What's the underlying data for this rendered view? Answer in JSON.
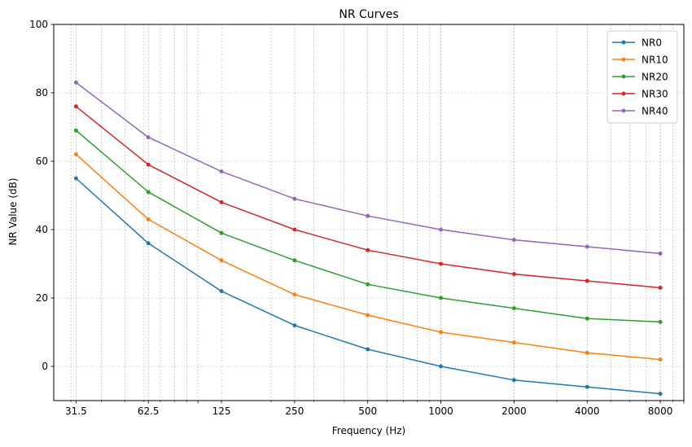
{
  "chart_data": {
    "type": "line",
    "title": "NR Curves",
    "xlabel": "Frequency (Hz)",
    "ylabel": "NR Value (dB)",
    "xscale": "log",
    "xlim": [
      25.5,
      10000
    ],
    "ylim": [
      -10,
      100
    ],
    "grid": "both",
    "legend_position": "upper right",
    "x": [
      31.5,
      62.5,
      125,
      250,
      500,
      1000,
      2000,
      4000,
      8000
    ],
    "x_tick_labels": [
      "31.5",
      "62.5",
      "125",
      "250",
      "500",
      "1000",
      "2000",
      "4000",
      "8000"
    ],
    "y_ticks": [
      0,
      20,
      40,
      60,
      80,
      100
    ],
    "series": [
      {
        "name": "NR0",
        "color": "#1f77b4",
        "values": [
          55,
          36,
          22,
          12,
          5,
          0,
          -4,
          -6,
          -8
        ]
      },
      {
        "name": "NR10",
        "color": "#ff7f0e",
        "values": [
          62,
          43,
          31,
          21,
          15,
          10,
          7,
          4,
          2
        ]
      },
      {
        "name": "NR20",
        "color": "#2ca02c",
        "values": [
          69,
          51,
          39,
          31,
          24,
          20,
          17,
          14,
          13
        ]
      },
      {
        "name": "NR30",
        "color": "#d62728",
        "values": [
          76,
          59,
          48,
          40,
          34,
          30,
          27,
          25,
          23
        ]
      },
      {
        "name": "NR40",
        "color": "#9467bd",
        "values": [
          83,
          67,
          57,
          49,
          44,
          40,
          37,
          35,
          33
        ]
      }
    ]
  }
}
